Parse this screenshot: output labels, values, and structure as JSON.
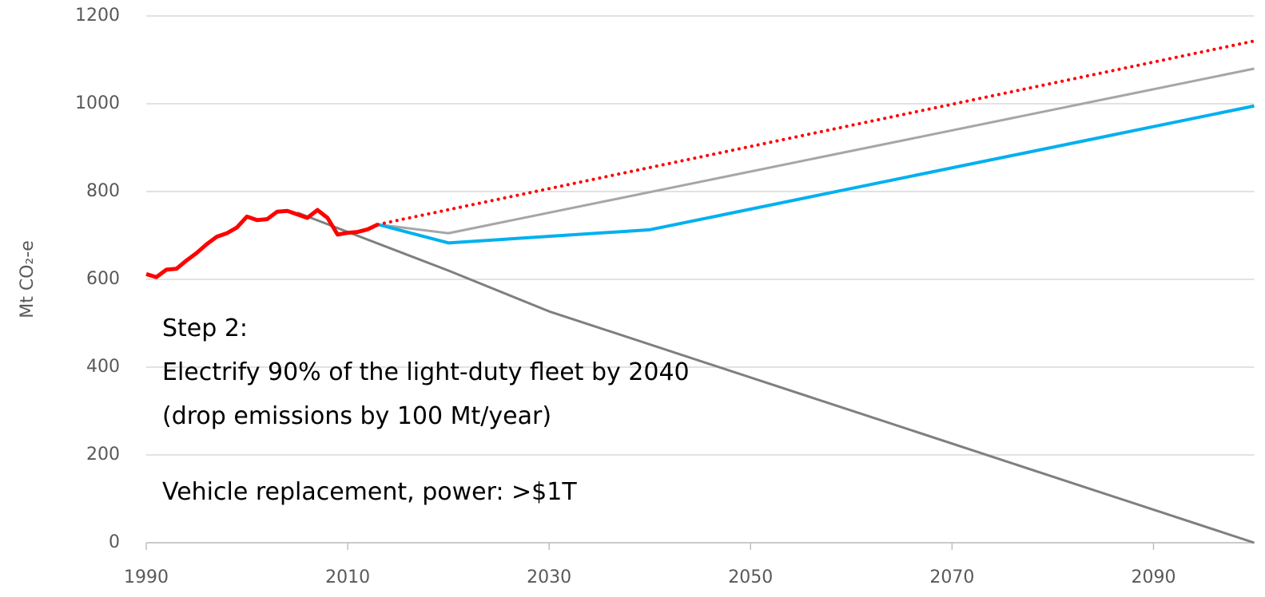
{
  "chart_data": {
    "type": "line",
    "y_label": "Mt CO₂-e",
    "annotations": [
      "Step 2:",
      "Electrify 90% of the light-duty fleet by 2040",
      "(drop emissions by 100 Mt/year)",
      "Vehicle replacement, power:  >$1T"
    ],
    "xlim": [
      1990,
      2100
    ],
    "xticks": [
      1990,
      2010,
      2030,
      2050,
      2070,
      2090
    ],
    "ylim": [
      0,
      1200
    ],
    "yticks": [
      0,
      200,
      400,
      600,
      800,
      1000,
      1200
    ],
    "grid": true,
    "series": [
      {
        "color": "#7f7f7f",
        "style": "solid",
        "width": 3,
        "x": [
          2005,
          2020,
          2030,
          2100
        ],
        "values": [
          752,
          620,
          527,
          0
        ]
      },
      {
        "color": "#a6a6a6",
        "style": "solid",
        "width": 3,
        "x": [
          2013,
          2020,
          2100
        ],
        "values": [
          725,
          705,
          1080
        ]
      },
      {
        "color": "#00b0f0",
        "style": "solid",
        "width": 4,
        "x": [
          2013,
          2020,
          2040,
          2100
        ],
        "values": [
          725,
          683,
          713,
          995
        ]
      },
      {
        "color": "#ff0000",
        "style": "dotted",
        "width": 4,
        "x": [
          2013,
          2100
        ],
        "values": [
          725,
          1143
        ]
      },
      {
        "color": "#ff0000",
        "style": "solid",
        "width": 5,
        "x": [
          1990,
          1991,
          1992,
          1993,
          1994,
          1995,
          1996,
          1997,
          1998,
          1999,
          2000,
          2001,
          2002,
          2003,
          2004,
          2005,
          2006,
          2007,
          2008,
          2009,
          2010,
          2011,
          2012,
          2013
        ],
        "values": [
          612,
          605,
          622,
          624,
          643,
          660,
          680,
          697,
          705,
          718,
          743,
          735,
          737,
          754,
          756,
          748,
          740,
          758,
          740,
          702,
          706,
          708,
          714,
          725
        ]
      }
    ]
  }
}
